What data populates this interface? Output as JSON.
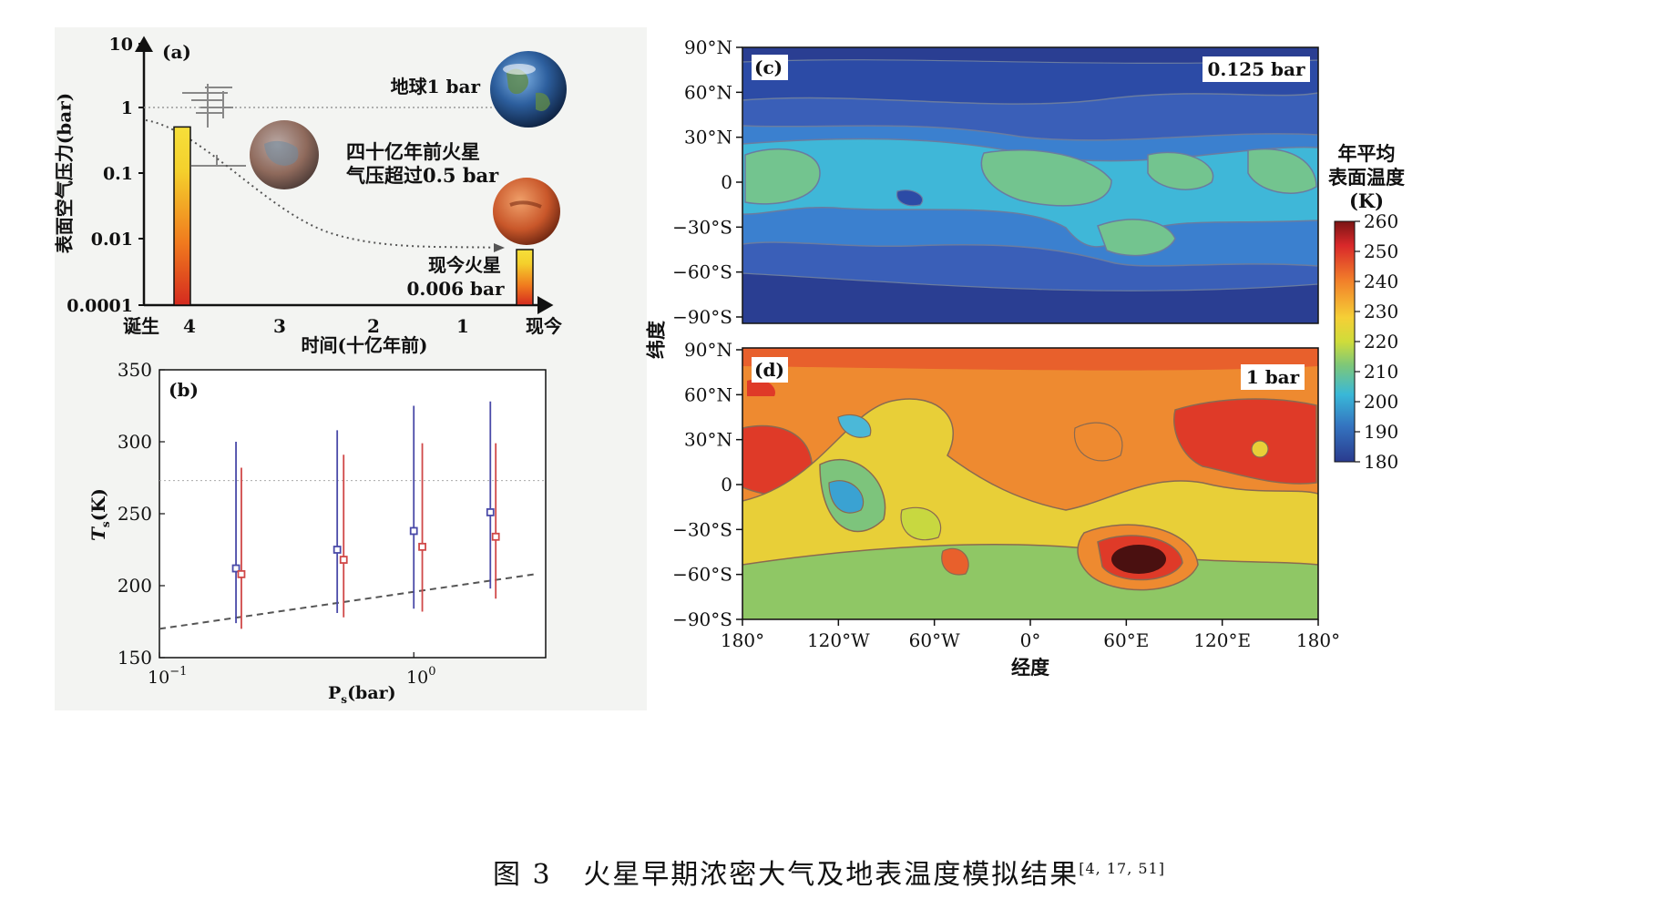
{
  "caption": {
    "label": "图 3",
    "text": "火星早期浓密大气及地表温度模拟结果",
    "refs": "[4, 17, 51]"
  },
  "panel_a": {
    "tag": "(a)",
    "ylabel": "表面空气压力(bar)",
    "xlabel": "时间(十亿年前)",
    "y_ticks": [
      "10",
      "1",
      "0.1",
      "0.01",
      "0.0001"
    ],
    "x_ticks": [
      "诞生",
      "4",
      "3",
      "2",
      "1",
      "现今"
    ],
    "earth_label": "地球1 bar",
    "early_label_1": "四十亿年前火星",
    "early_label_2": "气压超过0.5 bar",
    "now_label_1": "现今火星",
    "now_label_2": "0.006 bar",
    "earth_icon": "earth-globe",
    "mars_icon": "mars-globe"
  },
  "panel_b": {
    "tag": "(b)",
    "ylabel_main": "T",
    "ylabel_sub": "s",
    "ylabel_unit": "(K)",
    "xlabel_main": "P",
    "xlabel_sub": "s",
    "xlabel_unit": "(bar)",
    "y_ticks": [
      "350",
      "300",
      "250",
      "200",
      "150"
    ],
    "x_tick_1_base": "10",
    "x_tick_1_exp": "−1",
    "x_tick_2_base": "10",
    "x_tick_2_exp": "0"
  },
  "panel_c": {
    "tag": "(c)",
    "pressure": "0.125 bar"
  },
  "panel_d": {
    "tag": "(d)",
    "pressure": "1 bar"
  },
  "maps": {
    "ylabel": "纬度",
    "xlabel": "经度",
    "lat_ticks": [
      "90°N",
      "60°N",
      "30°N",
      "0",
      "−30°S",
      "−60°S",
      "−90°S"
    ],
    "lon_ticks": [
      "180°",
      "120°W",
      "60°W",
      "0°",
      "60°E",
      "120°E",
      "180°"
    ]
  },
  "colorbar": {
    "title_1": "年平均",
    "title_2": "表面温度",
    "title_3": "(K)",
    "ticks": [
      "260",
      "250",
      "240",
      "230",
      "220",
      "210",
      "200",
      "190",
      "180"
    ]
  },
  "chart_data": [
    {
      "type": "bar",
      "panel": "a",
      "ylabel": "表面空气压力(bar)",
      "xlabel": "时间(十亿年前)",
      "y_scale": "log",
      "ylim": [
        0.0001,
        10
      ],
      "categories": [
        "四十亿年前火星",
        "现今火星"
      ],
      "values": [
        0.5,
        0.006
      ],
      "reference_line": {
        "label": "地球1 bar",
        "value": 1
      }
    },
    {
      "type": "scatter",
      "panel": "b",
      "xlabel": "Ps(bar)",
      "ylabel": "Ts(K)",
      "x_scale": "log",
      "ylim": [
        150,
        350
      ],
      "reference_line": 273,
      "series": [
        {
          "color": "#4a4aa8",
          "points": [
            {
              "x": 0.2,
              "y": 212,
              "low": 174,
              "high": 300
            },
            {
              "x": 0.5,
              "y": 225,
              "low": 181,
              "high": 308
            },
            {
              "x": 1.0,
              "y": 238,
              "low": 184,
              "high": 325
            },
            {
              "x": 2.0,
              "y": 251,
              "low": 198,
              "high": 328
            }
          ]
        },
        {
          "color": "#d04848",
          "points": [
            {
              "x": 0.21,
              "y": 208,
              "low": 170,
              "high": 282
            },
            {
              "x": 0.53,
              "y": 218,
              "low": 178,
              "high": 291
            },
            {
              "x": 1.08,
              "y": 227,
              "low": 182,
              "high": 299
            },
            {
              "x": 2.1,
              "y": 234,
              "low": 191,
              "high": 299
            }
          ]
        }
      ],
      "dashed_line": {
        "x": [
          0.1,
          3.0
        ],
        "y": [
          170,
          208
        ]
      }
    },
    {
      "type": "heatmap",
      "panel": "c",
      "title": "0.125 bar",
      "x_range": [
        -180,
        180
      ],
      "y_range": [
        -90,
        90
      ],
      "color_range": [
        180,
        260
      ]
    },
    {
      "type": "heatmap",
      "panel": "d",
      "title": "1 bar",
      "x_range": [
        -180,
        180
      ],
      "y_range": [
        -90,
        90
      ],
      "color_range": [
        180,
        260
      ]
    }
  ],
  "colors": {
    "blue_series": "#4a4aa8",
    "red_series": "#d04848",
    "background": "#f3f4f2"
  }
}
